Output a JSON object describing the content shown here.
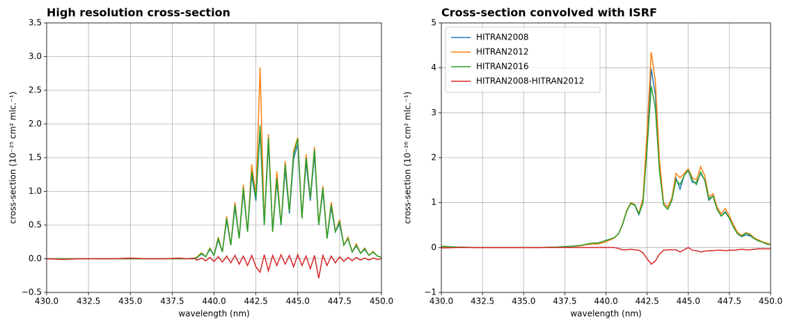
{
  "chart_data": [
    {
      "type": "line",
      "title": "High resolution cross-section",
      "x_label": "wavelength (nm)",
      "y_label": "cross-section (10⁻²⁵ cm² mlc.⁻¹)",
      "x": [
        430,
        431,
        432,
        433,
        434,
        435,
        436,
        437,
        438,
        438.25,
        438.5,
        438.75,
        439,
        439.25,
        439.5,
        439.75,
        440,
        440.25,
        440.5,
        440.75,
        441,
        441.25,
        441.5,
        441.75,
        442,
        442.25,
        442.5,
        442.75,
        443,
        443.25,
        443.5,
        443.75,
        444,
        444.25,
        444.5,
        444.75,
        445,
        445.25,
        445.5,
        445.75,
        446,
        446.25,
        446.5,
        446.75,
        447,
        447.25,
        447.5,
        447.75,
        448,
        448.25,
        448.5,
        448.75,
        449,
        449.25,
        449.5,
        449.75,
        450
      ],
      "series": [
        {
          "color": "#1f77b4",
          "values": [
            0,
            0,
            0,
            0,
            0,
            0,
            0,
            0,
            0,
            0,
            0,
            0,
            0.02,
            0.07,
            0.03,
            0.14,
            0.05,
            0.28,
            0.1,
            0.57,
            0.2,
            0.76,
            0.3,
            1.0,
            0.4,
            1.24,
            0.86,
            1.9,
            0.5,
            1.72,
            0.4,
            1.15,
            0.5,
            1.33,
            0.67,
            1.48,
            1.7,
            0.6,
            1.43,
            0.86,
            1.55,
            0.5,
            1.0,
            0.3,
            0.76,
            0.4,
            0.52,
            0.2,
            0.3,
            0.1,
            0.19,
            0.08,
            0.14,
            0.05,
            0.1,
            0.04,
            0.02
          ]
        },
        {
          "color": "#ff7f0e",
          "values": [
            0,
            0,
            0,
            0,
            0,
            0,
            0,
            0,
            0,
            0,
            0,
            0,
            0.03,
            0.09,
            0.03,
            0.16,
            0.05,
            0.32,
            0.1,
            0.63,
            0.2,
            0.84,
            0.3,
            1.1,
            0.4,
            1.4,
            0.95,
            2.84,
            0.5,
            1.85,
            0.4,
            1.3,
            0.5,
            1.45,
            0.7,
            1.6,
            1.8,
            0.6,
            1.55,
            0.9,
            1.66,
            0.5,
            1.08,
            0.3,
            0.84,
            0.4,
            0.58,
            0.2,
            0.32,
            0.1,
            0.22,
            0.08,
            0.16,
            0.05,
            0.11,
            0.04,
            0.02
          ]
        },
        {
          "color": "#2ca02c",
          "values": [
            0,
            0,
            0,
            0,
            0,
            0,
            0,
            0,
            0,
            0,
            0,
            0,
            0.02,
            0.08,
            0.03,
            0.15,
            0.05,
            0.3,
            0.1,
            0.6,
            0.2,
            0.8,
            0.3,
            1.05,
            0.4,
            1.3,
            0.9,
            1.98,
            0.5,
            1.8,
            0.4,
            1.2,
            0.5,
            1.4,
            0.7,
            1.55,
            1.78,
            0.6,
            1.5,
            0.9,
            1.62,
            0.5,
            1.05,
            0.3,
            0.8,
            0.4,
            0.55,
            0.2,
            0.3,
            0.1,
            0.2,
            0.08,
            0.15,
            0.05,
            0.1,
            0.04,
            0.02
          ]
        },
        {
          "color": "#d62728",
          "values": [
            0,
            -0.01,
            0,
            0,
            0,
            0.01,
            0,
            0,
            0.01,
            0,
            0,
            0.01,
            -0.02,
            0.01,
            -0.03,
            0.02,
            -0.04,
            0.03,
            -0.05,
            0.04,
            -0.06,
            0.05,
            -0.08,
            0.04,
            -0.1,
            0.05,
            -0.12,
            -0.2,
            0.06,
            -0.18,
            0.05,
            -0.1,
            0.06,
            -0.08,
            0.05,
            -0.12,
            0.06,
            -0.1,
            0.04,
            -0.15,
            0.05,
            -0.29,
            0.05,
            -0.1,
            0.04,
            -0.06,
            0.03,
            -0.04,
            0.02,
            -0.03,
            0.02,
            -0.02,
            0.01,
            -0.02,
            0.01,
            -0.01,
            0
          ]
        }
      ],
      "xlim": [
        430,
        450
      ],
      "xticks": [
        {
          "value": 430,
          "label": "430.0"
        },
        432.5,
        {
          "value": 435,
          "label": "435.0"
        },
        437.5,
        {
          "value": 440,
          "label": "440.0"
        },
        442.5,
        {
          "value": 445,
          "label": "445.0"
        },
        447.5,
        {
          "value": 450,
          "label": "450.0"
        }
      ],
      "ylim": [
        -0.5,
        3.5
      ],
      "yticks": [
        {
          "value": -0.5,
          "label": "−0.5"
        },
        {
          "value": 0,
          "label": "0.0"
        },
        0.5,
        {
          "value": 1,
          "label": "1.0"
        },
        1.5,
        {
          "value": 2,
          "label": "2.0"
        },
        2.5,
        {
          "value": 3,
          "label": "3.0"
        },
        3.5
      ],
      "grid": true
    },
    {
      "type": "line",
      "title": "Cross-section convolved with ISRF",
      "x_label": "wavelength (nm)",
      "y_label": "cross-section (10⁻²⁶ cm² mlc.⁻¹)",
      "x": [
        430,
        431,
        432,
        433,
        434,
        435,
        436,
        437,
        438,
        438.25,
        438.5,
        438.75,
        439,
        439.25,
        439.5,
        439.75,
        440,
        440.25,
        440.5,
        440.75,
        441,
        441.25,
        441.5,
        441.75,
        442,
        442.25,
        442.5,
        442.75,
        443,
        443.25,
        443.5,
        443.75,
        444,
        444.25,
        444.5,
        444.75,
        445,
        445.25,
        445.5,
        445.75,
        446,
        446.25,
        446.5,
        446.75,
        447,
        447.25,
        447.5,
        447.75,
        448,
        448.25,
        448.5,
        448.75,
        449,
        449.25,
        449.5,
        449.75,
        450
      ],
      "series": [
        {
          "name": "HITRAN2008",
          "color": "#1f77b4",
          "values": [
            0.02,
            0.01,
            0,
            0,
            0,
            0,
            0,
            0.01,
            0.03,
            0.03,
            0.04,
            0.06,
            0.07,
            0.08,
            0.08,
            0.1,
            0.13,
            0.17,
            0.21,
            0.3,
            0.5,
            0.8,
            0.98,
            0.94,
            0.73,
            1.0,
            2.4,
            3.98,
            3.4,
            1.75,
            0.95,
            0.85,
            1.05,
            1.55,
            1.3,
            1.6,
            1.72,
            1.45,
            1.45,
            1.65,
            1.5,
            1.05,
            1.15,
            0.85,
            0.7,
            0.8,
            0.65,
            0.45,
            0.3,
            0.24,
            0.28,
            0.26,
            0.2,
            0.15,
            0.12,
            0.08,
            0.06
          ]
        },
        {
          "name": "HITRAN2012",
          "color": "#ff7f0e",
          "values": [
            0.02,
            0.01,
            0,
            0,
            0,
            0,
            0,
            0.01,
            0.03,
            0.03,
            0.04,
            0.06,
            0.07,
            0.08,
            0.08,
            0.1,
            0.13,
            0.17,
            0.21,
            0.3,
            0.52,
            0.82,
            1.0,
            0.96,
            0.76,
            1.1,
            2.6,
            4.35,
            3.7,
            1.95,
            1.0,
            0.9,
            1.1,
            1.65,
            1.55,
            1.65,
            1.75,
            1.55,
            1.5,
            1.8,
            1.6,
            1.12,
            1.2,
            0.9,
            0.75,
            0.87,
            0.7,
            0.5,
            0.33,
            0.27,
            0.33,
            0.3,
            0.22,
            0.17,
            0.13,
            0.1,
            0.07
          ]
        },
        {
          "name": "HITRAN2016",
          "color": "#2ca02c",
          "values": [
            0.03,
            0.01,
            0,
            0,
            0,
            0,
            0,
            0.01,
            0.03,
            0.04,
            0.05,
            0.07,
            0.09,
            0.1,
            0.1,
            0.13,
            0.16,
            0.19,
            0.22,
            0.3,
            0.5,
            0.8,
            0.98,
            0.95,
            0.75,
            1.0,
            2.2,
            3.6,
            3.1,
            1.7,
            0.95,
            0.85,
            1.05,
            1.5,
            1.4,
            1.6,
            1.72,
            1.5,
            1.4,
            1.68,
            1.5,
            1.08,
            1.15,
            0.85,
            0.7,
            0.78,
            0.65,
            0.45,
            0.3,
            0.25,
            0.32,
            0.28,
            0.2,
            0.15,
            0.12,
            0.08,
            0.06
          ]
        },
        {
          "name": "HITRAN2008-HITRAN2012",
          "color": "#d62728",
          "values": [
            -0.01,
            0,
            0,
            0,
            0,
            0,
            0,
            0,
            0,
            0,
            0,
            0,
            0,
            0,
            0,
            0,
            0,
            0,
            0,
            -0.02,
            -0.05,
            -0.05,
            -0.04,
            -0.05,
            -0.06,
            -0.12,
            -0.25,
            -0.37,
            -0.3,
            -0.15,
            -0.06,
            -0.05,
            -0.05,
            -0.05,
            -0.1,
            -0.05,
            0,
            -0.06,
            -0.07,
            -0.1,
            -0.08,
            -0.07,
            -0.07,
            -0.06,
            -0.06,
            -0.07,
            -0.06,
            -0.06,
            -0.05,
            -0.04,
            -0.05,
            -0.05,
            -0.04,
            -0.03,
            -0.03,
            -0.03,
            -0.03
          ]
        }
      ],
      "xlim": [
        430,
        450
      ],
      "xticks": [
        {
          "value": 430,
          "label": "430.0"
        },
        432.5,
        {
          "value": 435,
          "label": "435.0"
        },
        437.5,
        {
          "value": 440,
          "label": "440.0"
        },
        442.5,
        {
          "value": 445,
          "label": "445.0"
        },
        447.5,
        {
          "value": 450,
          "label": "450.0"
        }
      ],
      "ylim": [
        -1,
        5
      ],
      "yticks": [
        {
          "value": -1,
          "label": "−1"
        },
        0,
        1,
        2,
        3,
        4,
        5
      ],
      "grid": true,
      "legend": "upper left"
    }
  ]
}
